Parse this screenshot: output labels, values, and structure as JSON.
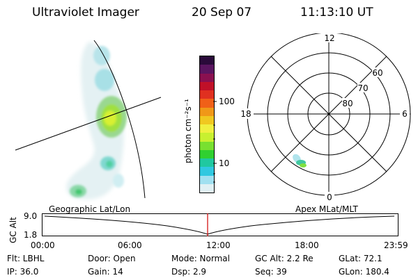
{
  "header": {
    "instrument": "Ultraviolet Imager",
    "date": "20 Sep 07",
    "time": "11:13:10 UT"
  },
  "colorbar": {
    "unit_label": "photon cm⁻²s⁻¹",
    "tick_100": "100",
    "tick_10": "10",
    "colors": [
      "#2a0a3a",
      "#5a1560",
      "#8a1050",
      "#c01028",
      "#e03020",
      "#f06018",
      "#f09818",
      "#f0c820",
      "#f0f040",
      "#c8f030",
      "#78e030",
      "#30d030",
      "#20c8a0",
      "#30c8e0",
      "#a0e0f0",
      "#e0f0f4"
    ]
  },
  "polar_plot": {
    "label_top": "12",
    "label_left": "18",
    "label_right": "6",
    "label_bottom": "0",
    "lat_60": "60",
    "lat_70": "70",
    "lat_80": "80"
  },
  "frame_labels": {
    "left": "Geographic Lat/Lon",
    "right": "Apex MLat/MLT"
  },
  "altitude_strip": {
    "y_label": "GC Alt",
    "y_max": "9.0",
    "y_min": "1.8",
    "x_ticks": [
      "00:00",
      "06:00",
      "12:00",
      "18:00",
      "23:59"
    ],
    "marker_color": "#d00000"
  },
  "status": {
    "row1": [
      {
        "key": "flt",
        "text": "Flt: LBHL"
      },
      {
        "key": "door",
        "text": "Door: Open"
      },
      {
        "key": "mode",
        "text": "Mode:  Normal"
      },
      {
        "key": "gcalt",
        "text": "GC Alt: 2.2 Re"
      },
      {
        "key": "glat",
        "text": "GLat:  72.1"
      }
    ],
    "row2": [
      {
        "key": "ip",
        "text": "IP: 36.0"
      },
      {
        "key": "gain",
        "text": "Gain: 14"
      },
      {
        "key": "dsp",
        "text": "Dsp:      2.9"
      },
      {
        "key": "seq",
        "text": "Seq: 39"
      },
      {
        "key": "glon",
        "text": "GLon: 180.4"
      }
    ]
  }
}
